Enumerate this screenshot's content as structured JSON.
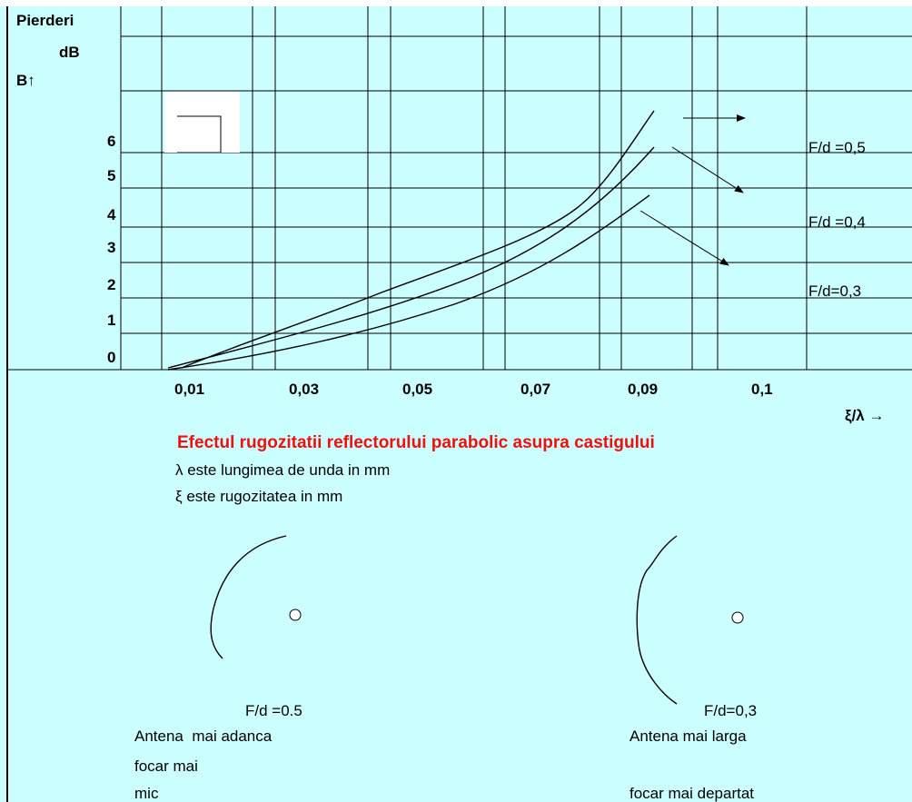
{
  "axis": {
    "y_title_1": "Pierderi",
    "y_title_2": "dB",
    "y_title_3": "B↑",
    "x_title": "ξ/λ →",
    "y_labels": [
      "6",
      "5",
      "4",
      "3",
      "2",
      "1",
      "0"
    ],
    "x_labels": [
      "0,01",
      "0,03",
      "0,05",
      "0,07",
      "0,09",
      "0,1"
    ]
  },
  "curves": [
    "F/d =0,5",
    "F/d =0,4",
    "F/d=0,3"
  ],
  "caption": {
    "title": "Efectul rugozitatii reflectorului parabolic asupra castigului",
    "lines": [
      "λ este lungimea de unda in mm",
      "ξ este rugozitatea in mm"
    ]
  },
  "antennas": [
    {
      "label": "F/d =0.5",
      "text": [
        "Antena  mai adanca",
        "focar mai",
        "mic"
      ]
    },
    {
      "label": "F/d=0,3",
      "text": [
        "Antena mai larga",
        "focar mai departat"
      ]
    }
  ]
}
